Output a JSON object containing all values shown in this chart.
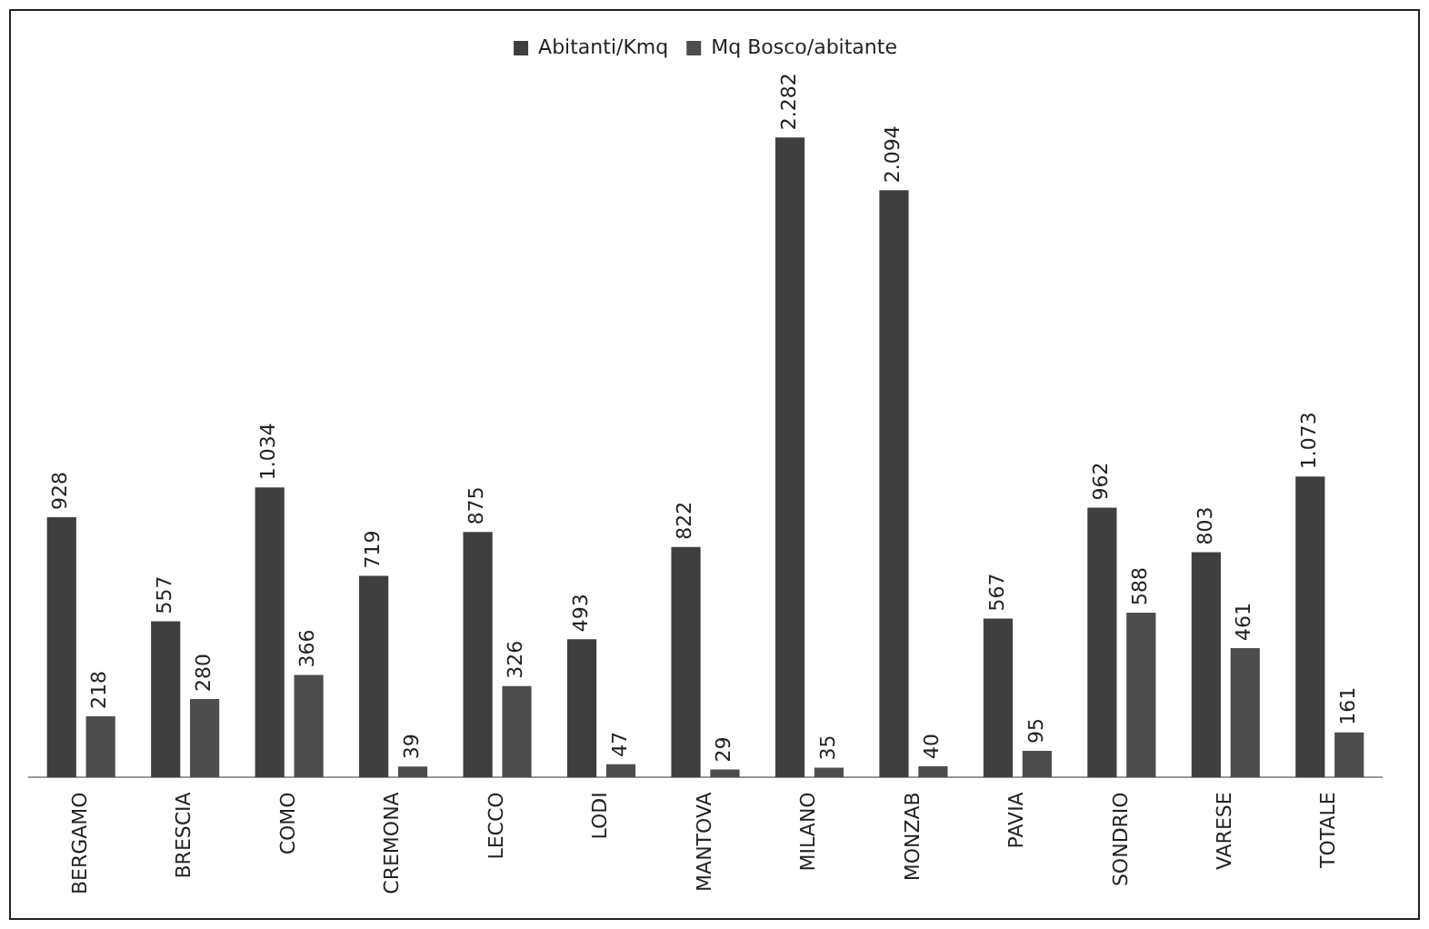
{
  "chart_data": {
    "type": "bar",
    "categories": [
      "BERGAMO",
      "BRESCIA",
      "COMO",
      "CREMONA",
      "LECCO",
      "LODI",
      "MANTOVA",
      "MILANO",
      "MONZAB",
      "PAVIA",
      "SONDRIO",
      "VARESE",
      "TOTALE"
    ],
    "series": [
      {
        "name": "Abitanti/Kmq",
        "color": "#3f3f3f",
        "values": [
          928,
          557,
          1034,
          719,
          875,
          493,
          822,
          2282,
          2094,
          567,
          962,
          803,
          1073
        ],
        "value_labels": [
          "928",
          "557",
          "1.034",
          "719",
          "875",
          "493",
          "822",
          "2.282",
          "2.094",
          "567",
          "962",
          "803",
          "1.073"
        ]
      },
      {
        "name": "Mq Bosco/abitante",
        "color": "#4d4d4d",
        "values": [
          218,
          280,
          366,
          39,
          326,
          47,
          29,
          35,
          40,
          95,
          588,
          461,
          161
        ],
        "value_labels": [
          "218",
          "280",
          "366",
          "39",
          "326",
          "47",
          "29",
          "35",
          "40",
          "95",
          "588",
          "461",
          "161"
        ]
      }
    ],
    "legend": "top",
    "grid": false
  }
}
